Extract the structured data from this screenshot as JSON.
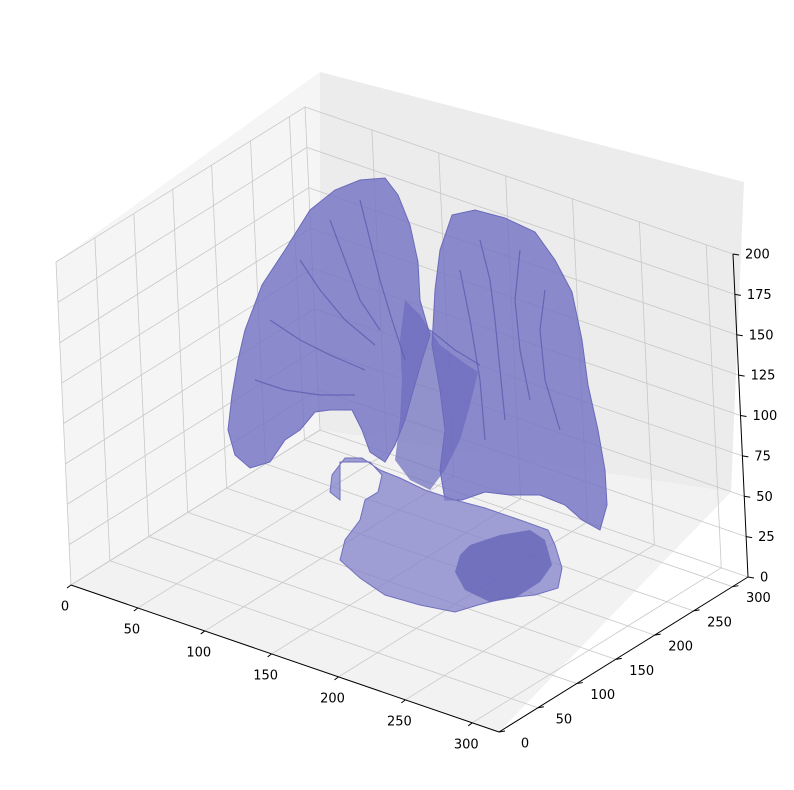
{
  "chart_data": {
    "type": "surface3d",
    "title": "",
    "xlabel": "",
    "ylabel": "",
    "zlabel": "",
    "grid": true,
    "x_ticks": [
      0,
      50,
      100,
      150,
      200,
      250,
      300
    ],
    "y_ticks": [
      0,
      50,
      100,
      150,
      200,
      250,
      300
    ],
    "z_ticks": [
      0,
      25,
      50,
      75,
      100,
      125,
      150,
      175,
      200
    ],
    "xlim": [
      0,
      320
    ],
    "ylim": [
      0,
      320
    ],
    "zlim": [
      0,
      200
    ],
    "series": [
      {
        "mesh_color": "#7272c2",
        "edge_color": "#6464b8",
        "opacity": 0.75
      }
    ]
  },
  "colors": {
    "pane_floor": "#f2f2f2",
    "pane_left": "#f5f5f5",
    "pane_back": "#ececec",
    "grid": "#c8c8c8",
    "axis": "#000000"
  }
}
